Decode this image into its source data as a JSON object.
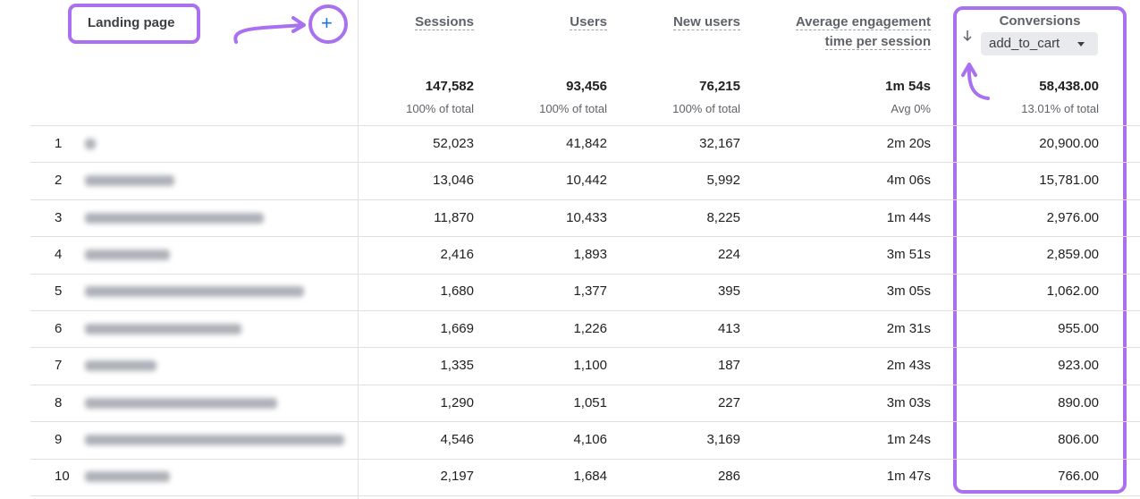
{
  "header": {
    "landing_page": "Landing page",
    "add_button": "+",
    "columns": [
      "Sessions",
      "Users",
      "New users",
      "Average engagement time per session",
      "Conversions"
    ],
    "event_selector": "add_to_cart"
  },
  "totals": {
    "values": [
      "147,582",
      "93,456",
      "76,215",
      "1m 54s",
      "58,438.00"
    ],
    "notes": [
      "100% of total",
      "100% of total",
      "100% of total",
      "Avg 0%",
      "13.01% of total"
    ]
  },
  "table": {
    "rows": [
      [
        "1",
        "52,023",
        "41,842",
        "32,167",
        "2m 20s",
        "20,900.00"
      ],
      [
        "2",
        "13,046",
        "10,442",
        "5,992",
        "4m 06s",
        "15,781.00"
      ],
      [
        "3",
        "11,870",
        "10,433",
        "8,225",
        "1m 44s",
        "2,976.00"
      ],
      [
        "4",
        "2,416",
        "1,893",
        "224",
        "3m 51s",
        "2,859.00"
      ],
      [
        "5",
        "1,680",
        "1,377",
        "395",
        "3m 05s",
        "1,062.00"
      ],
      [
        "6",
        "1,669",
        "1,226",
        "413",
        "2m 31s",
        "955.00"
      ],
      [
        "7",
        "1,335",
        "1,100",
        "187",
        "2m 43s",
        "923.00"
      ],
      [
        "8",
        "1,290",
        "1,051",
        "227",
        "3m 03s",
        "890.00"
      ],
      [
        "9",
        "4,546",
        "4,106",
        "3,169",
        "1m 24s",
        "806.00"
      ],
      [
        "10",
        "2,197",
        "1,684",
        "286",
        "1m 47s",
        "766.00"
      ]
    ]
  }
}
